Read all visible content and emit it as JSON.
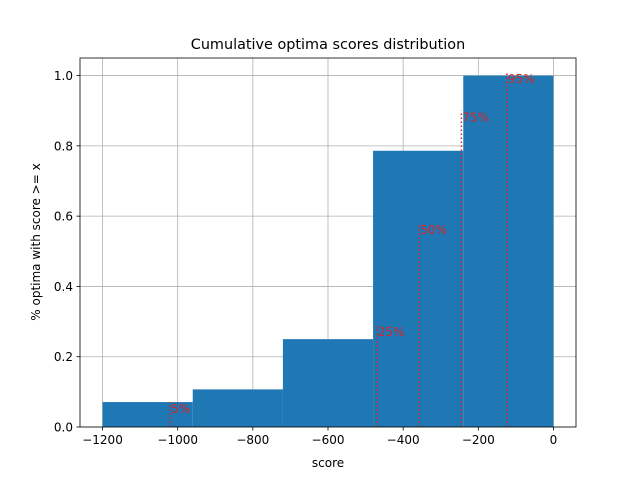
{
  "chart_data": {
    "type": "bar",
    "title": "Cumulative optima scores distribution",
    "xlabel": "score",
    "ylabel": "% optima with score >= x",
    "xlim": [
      -1260,
      60
    ],
    "ylim": [
      0,
      1.05
    ],
    "xticks": [
      -1200,
      -1000,
      -800,
      -600,
      -400,
      -200,
      0
    ],
    "xtick_labels": [
      "−1200",
      "−1000",
      "−800",
      "−600",
      "−400",
      "−200",
      "0"
    ],
    "yticks": [
      0.0,
      0.2,
      0.4,
      0.6,
      0.8,
      1.0
    ],
    "ytick_labels": [
      "0.0",
      "0.2",
      "0.4",
      "0.6",
      "0.8",
      "1.0"
    ],
    "grid": true,
    "bar_color": "#1f77b4",
    "bins": [
      {
        "x0": -1200,
        "x1": -960,
        "value": 0.071
      },
      {
        "x0": -960,
        "x1": -720,
        "value": 0.107
      },
      {
        "x0": -720,
        "x1": -480,
        "value": 0.25
      },
      {
        "x0": -480,
        "x1": -240,
        "value": 0.786
      },
      {
        "x0": -240,
        "x1": 0,
        "value": 1.0
      }
    ],
    "percentile_color": "#d62728",
    "percentiles": [
      {
        "label": "5%",
        "x": -1020,
        "y": 0.071
      },
      {
        "label": "25%",
        "x": -470,
        "y": 0.29
      },
      {
        "label": "50%",
        "x": -357,
        "y": 0.58
      },
      {
        "label": "75%",
        "x": -245,
        "y": 0.9
      },
      {
        "label": "95%",
        "x": -124,
        "y": 1.01
      }
    ]
  }
}
